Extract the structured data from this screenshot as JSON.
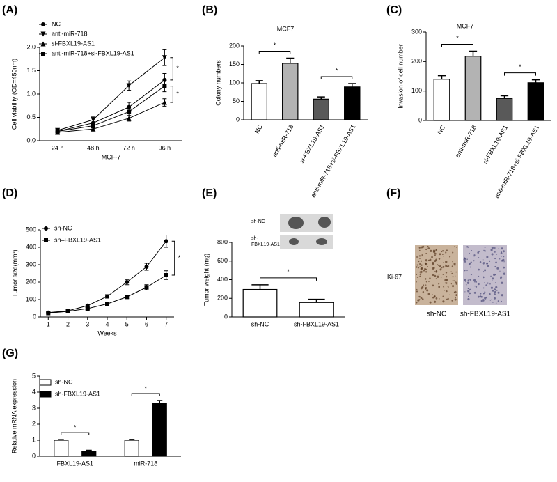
{
  "chart_data": [
    {
      "panel": "(A)",
      "type": "line",
      "categories": [
        "24 h",
        "48 h",
        "72 h",
        "96 h"
      ],
      "x_label": "MCF-7",
      "y_label": "Cell viability (OD=450nm)",
      "ylim": [
        0,
        2
      ],
      "yticks": [
        {
          "value": 0,
          "label": "0.0"
        },
        {
          "value": 0.5,
          "label": "0.5"
        },
        {
          "value": 1,
          "label": "1.0"
        },
        {
          "value": 1.5,
          "label": "1.5"
        },
        {
          "value": 2,
          "label": "2.0"
        }
      ],
      "series": [
        {
          "name": "NC",
          "color": "#000000",
          "marker": "circle",
          "values": [
            0.2,
            0.38,
            0.72,
            1.3
          ],
          "errors": [
            0.03,
            0.06,
            0.1,
            0.14
          ]
        },
        {
          "name": "anti-miR-718",
          "color": "#000000",
          "marker": "triangle-down",
          "values": [
            0.22,
            0.45,
            1.18,
            1.78
          ],
          "errors": [
            0.03,
            0.06,
            0.1,
            0.17
          ]
        },
        {
          "name": "si-FBXL19-AS1",
          "color": "#000000",
          "marker": "triangle-up",
          "values": [
            0.18,
            0.25,
            0.48,
            0.82
          ],
          "errors": [
            0.02,
            0.04,
            0.06,
            0.08
          ]
        },
        {
          "name": "anti-miR-718+si-FBXL19-AS1",
          "color": "#000000",
          "marker": "square",
          "values": [
            0.2,
            0.32,
            0.62,
            1.17
          ],
          "errors": [
            0.03,
            0.05,
            0.08,
            0.12
          ]
        }
      ],
      "annotations": [
        "*",
        "*"
      ]
    },
    {
      "panel": "(B)",
      "type": "bar",
      "title": "MCF7",
      "y_label": "Colony numbers",
      "categories": [
        "NC",
        "anti-miR-718",
        "si-FBXL19-AS1",
        "anti-miR-718+si-FBXL19-AS1"
      ],
      "values": [
        98,
        153,
        56,
        89
      ],
      "errors": [
        8,
        14,
        6,
        9
      ],
      "colors": [
        "#ffffff",
        "#b3b3b3",
        "#595959",
        "#000000"
      ],
      "ylim": [
        0,
        200
      ],
      "yticks": [
        0,
        50,
        100,
        150,
        200
      ],
      "annotations": [
        "*",
        "*"
      ]
    },
    {
      "panel": "(C)",
      "type": "bar",
      "title": "MCF7",
      "y_label": "Invasion of cell number",
      "categories": [
        "NC",
        "anti-miR-718",
        "si-FBXL19-AS1",
        "anti-miR-718+si-FBXL19-AS1"
      ],
      "values": [
        140,
        218,
        75,
        128
      ],
      "errors": [
        12,
        17,
        9,
        10
      ],
      "colors": [
        "#ffffff",
        "#b3b3b3",
        "#595959",
        "#000000"
      ],
      "ylim": [
        0,
        300
      ],
      "yticks": [
        0,
        100,
        200,
        300
      ],
      "annotations": [
        "*",
        "*"
      ]
    },
    {
      "panel": "(D)",
      "type": "line",
      "x": [
        1,
        2,
        3,
        4,
        5,
        6,
        7
      ],
      "xlim": [
        0.6,
        7.4
      ],
      "xticks": [
        1,
        2,
        3,
        4,
        5,
        6,
        7
      ],
      "x_label": "Weeks",
      "y_label": "Tumor size(mm³)",
      "ylim": [
        0,
        500
      ],
      "yticks": [
        0,
        100,
        200,
        300,
        400,
        500
      ],
      "series": [
        {
          "name": "sh-NC",
          "color": "#000000",
          "marker": "circle",
          "values": [
            25,
            35,
            65,
            118,
            200,
            288,
            435
          ],
          "errors": [
            4,
            5,
            8,
            10,
            15,
            20,
            35
          ]
        },
        {
          "name": "sh–FBXL19-AS1",
          "color": "#000000",
          "marker": "square",
          "values": [
            22,
            32,
            48,
            75,
            115,
            170,
            240
          ],
          "errors": [
            3,
            4,
            6,
            8,
            10,
            15,
            25
          ]
        }
      ],
      "annotations": [
        "*"
      ]
    },
    {
      "panel": "(E)",
      "type": "bar",
      "image_labels": [
        [
          "sh-NC"
        ],
        [
          "sh-",
          "FBXL19-AS1"
        ]
      ],
      "y_label": "Tumor weight (mg)",
      "categories": [
        "sh-NC",
        "sh-FBXL19-AS1"
      ],
      "values": [
        295,
        155
      ],
      "errors": [
        50,
        35
      ],
      "colors": [
        "#ffffff",
        "#ffffff"
      ],
      "ylim": [
        0,
        800
      ],
      "yticks": [
        0,
        200,
        400,
        600,
        800
      ],
      "annotations": [
        "*"
      ]
    },
    {
      "panel": "(G)",
      "type": "grouped-bar",
      "y_label": "Relative mRNA expression",
      "categories": [
        "FBXL19-AS1",
        "miR-718"
      ],
      "series": [
        {
          "name": "sh-NC",
          "color": "#ffffff",
          "values": [
            1.0,
            1.0
          ],
          "errors": [
            0.04,
            0.05
          ]
        },
        {
          "name": "sh-FBXL19-AS1",
          "color": "#000000",
          "values": [
            0.3,
            3.28
          ],
          "errors": [
            0.07,
            0.2
          ]
        }
      ],
      "ylim": [
        0,
        5
      ],
      "yticks": [
        0,
        1,
        2,
        3,
        4,
        5
      ],
      "annotations": [
        "*",
        "*"
      ]
    }
  ],
  "panel_f": {
    "panel": "(F)",
    "stain": "Ki-67",
    "captions": [
      "sh-NC",
      "sh-FBXL19-AS1"
    ]
  }
}
